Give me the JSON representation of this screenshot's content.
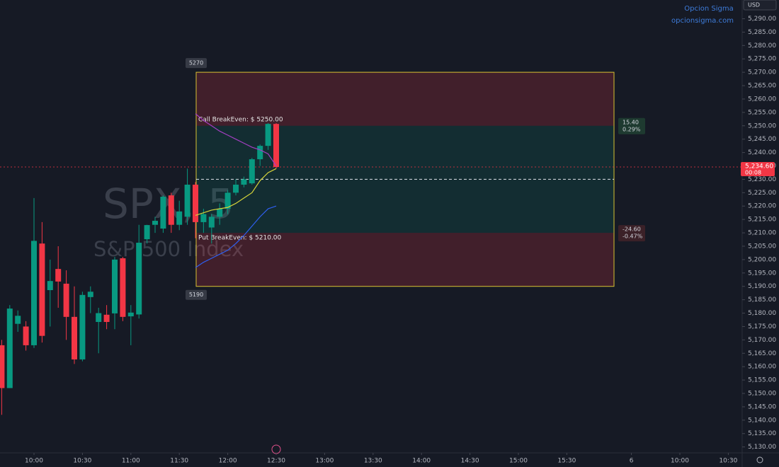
{
  "chart_data": {
    "type": "candlestick",
    "watermark_symbol": "SPX, 5",
    "watermark_name": "S&P 500 Index",
    "brand": "Opcion Sigma",
    "brand_url": "opcionsigma.com",
    "currency": "USD",
    "up_color": "#089981",
    "down_color": "#f23645",
    "open": [
      5168,
      5152,
      5176,
      5175,
      5168,
      5206,
      5188.6,
      5196.5,
      5191,
      5178.6,
      5162.7,
      5186,
      5176.7,
      5179.4,
      5179.9,
      5200.5,
      5178.8,
      5179.5,
      5207.6,
      5213,
      5211.6,
      5224,
      5213,
      5216,
      5228,
      5214,
      5212,
      5216,
      5219,
      5225,
      5228,
      5228.5,
      5237.5,
      5242.5,
      5250.7
    ],
    "high": [
      5170,
      5183,
      5181,
      5177,
      5223,
      5214,
      5200,
      5205,
      5196,
      5190,
      5188,
      5190,
      5182,
      5183,
      5201,
      5201,
      5183,
      5213,
      5213,
      5216,
      5224,
      5225,
      5222,
      5234,
      5229,
      5219,
      5217,
      5221,
      5226,
      5230,
      5231,
      5238,
      5243,
      5251,
      5251
    ],
    "low": [
      5142,
      5152,
      5173,
      5166,
      5167,
      5169,
      5175,
      5182,
      5170,
      5161,
      5162,
      5180,
      5165,
      5174,
      5174,
      5177,
      5168,
      5178,
      5206,
      5210,
      5210,
      5210,
      5211,
      5213,
      5208,
      5210,
      5206,
      5213,
      5217,
      5224,
      5227,
      5228,
      5235,
      5241,
      5234
    ],
    "close": [
      5152,
      5181.7,
      5179,
      5168,
      5207,
      5171.5,
      5192,
      5191.8,
      5178.6,
      5162.7,
      5186.8,
      5188,
      5180,
      5176.7,
      5200,
      5178.6,
      5180.2,
      5206.3,
      5212.9,
      5214.5,
      5223.5,
      5213,
      5218,
      5228,
      5214,
      5217,
      5216,
      5219,
      5225,
      5228,
      5230,
      5237.5,
      5242.5,
      5250.7,
      5234.6
    ],
    "lines": [
      {
        "color": "#a43fc2",
        "values": [
          null,
          null,
          null,
          null,
          null,
          null,
          null,
          null,
          null,
          null,
          null,
          null,
          null,
          null,
          null,
          null,
          null,
          null,
          null,
          null,
          null,
          null,
          null,
          null,
          5254.5,
          5252,
          5250,
          5248,
          5246.5,
          5245,
          5243.5,
          5242,
          5241,
          5239.5,
          5235
        ]
      },
      {
        "color": "#d6d43a",
        "values": [
          null,
          null,
          null,
          null,
          null,
          null,
          null,
          null,
          null,
          null,
          null,
          null,
          null,
          null,
          null,
          null,
          null,
          null,
          null,
          null,
          null,
          null,
          null,
          null,
          5216.5,
          5217.5,
          5218.5,
          5219,
          5219.5,
          5221,
          5223,
          5225,
          5229.5,
          5232.5,
          5234
        ]
      },
      {
        "color": "#2f5ff0",
        "values": [
          null,
          null,
          null,
          null,
          null,
          null,
          null,
          null,
          null,
          null,
          null,
          null,
          null,
          null,
          null,
          null,
          null,
          null,
          null,
          null,
          null,
          null,
          null,
          null,
          5197,
          5199,
          5200.5,
          5202,
          5203.5,
          5206,
          5209,
          5212.5,
          5216,
          5219,
          5220
        ]
      }
    ],
    "range_high": {
      "value": 5270,
      "label": "5270"
    },
    "range_low": {
      "value": 5190,
      "label": "5190"
    },
    "midline": 5230,
    "call_breakeven": {
      "value": 5250,
      "label": "Call BreakEven: $ 5250.00"
    },
    "put_breakeven": {
      "value": 5210,
      "label": "Put BreakEven: $ 5210.00"
    },
    "up_move": {
      "points": {
        "value": 15.4,
        "label": "15.40"
      },
      "percent": {
        "value": 0.29,
        "label": "0.29%"
      }
    },
    "down_move": {
      "points": {
        "value": -24.6,
        "label": "-24.60"
      },
      "percent": {
        "value": -0.47,
        "label": "-0.47%"
      }
    },
    "last_price": {
      "value": 5234.6,
      "label": "5,234.60"
    },
    "countdown": "00:08",
    "ylim": [
      5127,
      5297
    ],
    "yticks": [
      {
        "value": 5130,
        "label": "5,130.00"
      },
      {
        "value": 5135,
        "label": "5,135.00"
      },
      {
        "value": 5140,
        "label": "5,140.00"
      },
      {
        "value": 5145,
        "label": "5,145.00"
      },
      {
        "value": 5150,
        "label": "5,150.00"
      },
      {
        "value": 5155,
        "label": "5,155.00"
      },
      {
        "value": 5160,
        "label": "5,160.00"
      },
      {
        "value": 5165,
        "label": "5,165.00"
      },
      {
        "value": 5170,
        "label": "5,170.00"
      },
      {
        "value": 5175,
        "label": "5,175.00"
      },
      {
        "value": 5180,
        "label": "5,180.00"
      },
      {
        "value": 5185,
        "label": "5,185.00"
      },
      {
        "value": 5190,
        "label": "5,190.00"
      },
      {
        "value": 5195,
        "label": "5,195.00"
      },
      {
        "value": 5200,
        "label": "5,200.00"
      },
      {
        "value": 5205,
        "label": "5,205.00"
      },
      {
        "value": 5210,
        "label": "5,210.00"
      },
      {
        "value": 5215,
        "label": "5,215.00"
      },
      {
        "value": 5220,
        "label": "5,220.00"
      },
      {
        "value": 5225,
        "label": "5,225.00"
      },
      {
        "value": 5230,
        "label": "5,230.00"
      },
      {
        "value": 5235,
        "label": "5,235.00"
      },
      {
        "value": 5240,
        "label": "5,240.00"
      },
      {
        "value": 5245,
        "label": "5,245.00"
      },
      {
        "value": 5250,
        "label": "5,250.00"
      },
      {
        "value": 5255,
        "label": "5,255.00"
      },
      {
        "value": 5260,
        "label": "5,260.00"
      },
      {
        "value": 5265,
        "label": "5,265.00"
      },
      {
        "value": 5270,
        "label": "5,270.00"
      },
      {
        "value": 5275,
        "label": "5,275.00"
      },
      {
        "value": 5280,
        "label": "5,280.00"
      },
      {
        "value": 5285,
        "label": "5,285.00"
      },
      {
        "value": 5290,
        "label": "5,290.00"
      }
    ],
    "xticks": [
      {
        "value": 4,
        "label": "10:00"
      },
      {
        "value": 10,
        "label": "10:30"
      },
      {
        "value": 16,
        "label": "11:00"
      },
      {
        "value": 22,
        "label": "11:30"
      },
      {
        "value": 28,
        "label": "12:00"
      },
      {
        "value": 34,
        "label": "12:30"
      },
      {
        "value": 40,
        "label": "13:00"
      },
      {
        "value": 46,
        "label": "13:30"
      },
      {
        "value": 52,
        "label": "14:00"
      },
      {
        "value": 58,
        "label": "14:30"
      },
      {
        "value": 64,
        "label": "15:00"
      },
      {
        "value": 70,
        "label": "15:30"
      },
      {
        "value": 78,
        "label": "6"
      },
      {
        "value": 84,
        "label": "10:00"
      },
      {
        "value": 90,
        "label": "10:30"
      }
    ]
  }
}
